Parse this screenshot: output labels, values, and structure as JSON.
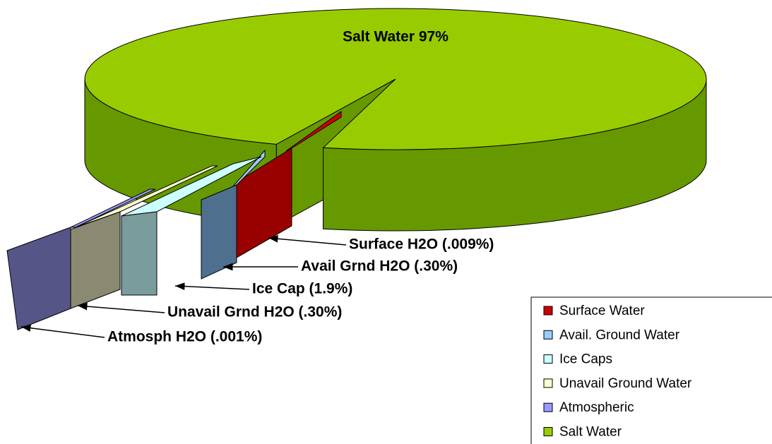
{
  "chart_data": {
    "type": "pie3d",
    "categories": [
      "Surface Water",
      "Avail. Ground Water",
      "Ice Caps",
      "Unavail Ground Water",
      "Atmospheric",
      "Salt Water"
    ],
    "values": [
      0.009,
      0.3,
      1.9,
      0.3,
      0.001,
      97
    ],
    "value_labels": [
      "Surface H2O (.009%)",
      "Avail Grnd H2O (.30%)",
      "Ice Cap (1.9%)",
      "Unavail Grnd H2O (.30%)",
      "Atmosph H2O (.001%)",
      "Salt Water 97%"
    ],
    "colors": [
      "#cc0000",
      "#99ccff",
      "#ccffff",
      "#ffffcc",
      "#9999ff",
      "#99cc00"
    ],
    "legend": "bottom-right"
  }
}
